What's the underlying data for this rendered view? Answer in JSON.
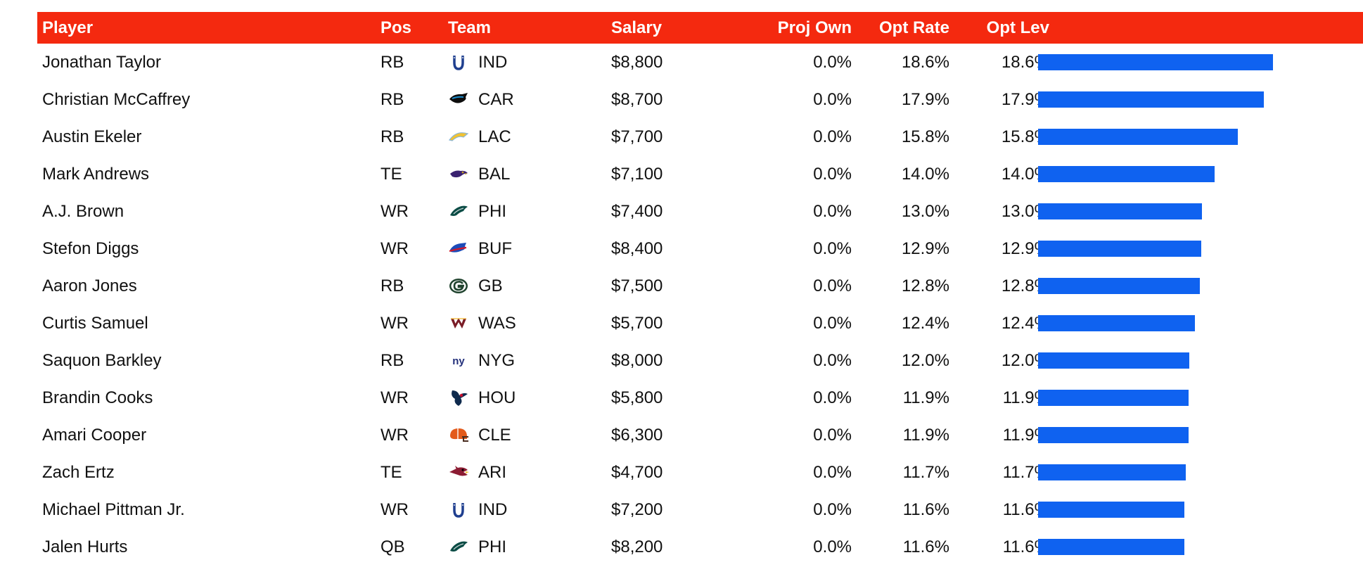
{
  "headers": {
    "player": "Player",
    "pos": "Pos",
    "team": "Team",
    "salary": "Salary",
    "proj_own": "Proj Own",
    "opt_rate": "Opt Rate",
    "opt_lev": "Opt Lev"
  },
  "colors": {
    "header_bg": "#f4290f",
    "bar": "#0f62f0"
  },
  "rows": [
    {
      "player": "Jonathan Taylor",
      "pos": "RB",
      "team": "IND",
      "logo": "colts-horseshoe-icon",
      "salary": "$8,800",
      "proj_own": "0.0%",
      "opt_rate": "18.6%",
      "opt_lev": "18.6%",
      "lev_value": 18.6
    },
    {
      "player": "Christian McCaffrey",
      "pos": "RB",
      "team": "CAR",
      "logo": "panthers-icon",
      "salary": "$8,700",
      "proj_own": "0.0%",
      "opt_rate": "17.9%",
      "opt_lev": "17.9%",
      "lev_value": 17.9
    },
    {
      "player": "Austin Ekeler",
      "pos": "RB",
      "team": "LAC",
      "logo": "chargers-bolt-icon",
      "salary": "$7,700",
      "proj_own": "0.0%",
      "opt_rate": "15.8%",
      "opt_lev": "15.8%",
      "lev_value": 15.8
    },
    {
      "player": "Mark Andrews",
      "pos": "TE",
      "team": "BAL",
      "logo": "ravens-icon",
      "salary": "$7,100",
      "proj_own": "0.0%",
      "opt_rate": "14.0%",
      "opt_lev": "14.0%",
      "lev_value": 14.0
    },
    {
      "player": "A.J. Brown",
      "pos": "WR",
      "team": "PHI",
      "logo": "eagles-icon",
      "salary": "$7,400",
      "proj_own": "0.0%",
      "opt_rate": "13.0%",
      "opt_lev": "13.0%",
      "lev_value": 13.0
    },
    {
      "player": "Stefon Diggs",
      "pos": "WR",
      "team": "BUF",
      "logo": "bills-icon",
      "salary": "$8,400",
      "proj_own": "0.0%",
      "opt_rate": "12.9%",
      "opt_lev": "12.9%",
      "lev_value": 12.9
    },
    {
      "player": "Aaron Jones",
      "pos": "RB",
      "team": "GB",
      "logo": "packers-g-icon",
      "salary": "$7,500",
      "proj_own": "0.0%",
      "opt_rate": "12.8%",
      "opt_lev": "12.8%",
      "lev_value": 12.8
    },
    {
      "player": "Curtis Samuel",
      "pos": "WR",
      "team": "WAS",
      "logo": "commanders-w-icon",
      "salary": "$5,700",
      "proj_own": "0.0%",
      "opt_rate": "12.4%",
      "opt_lev": "12.4%",
      "lev_value": 12.4
    },
    {
      "player": "Saquon Barkley",
      "pos": "RB",
      "team": "NYG",
      "logo": "giants-ny-icon",
      "salary": "$8,000",
      "proj_own": "0.0%",
      "opt_rate": "12.0%",
      "opt_lev": "12.0%",
      "lev_value": 12.0
    },
    {
      "player": "Brandin Cooks",
      "pos": "WR",
      "team": "HOU",
      "logo": "texans-icon",
      "salary": "$5,800",
      "proj_own": "0.0%",
      "opt_rate": "11.9%",
      "opt_lev": "11.9%",
      "lev_value": 11.9
    },
    {
      "player": "Amari Cooper",
      "pos": "WR",
      "team": "CLE",
      "logo": "browns-helmet-icon",
      "salary": "$6,300",
      "proj_own": "0.0%",
      "opt_rate": "11.9%",
      "opt_lev": "11.9%",
      "lev_value": 11.9
    },
    {
      "player": "Zach Ertz",
      "pos": "TE",
      "team": "ARI",
      "logo": "cardinals-icon",
      "salary": "$4,700",
      "proj_own": "0.0%",
      "opt_rate": "11.7%",
      "opt_lev": "11.7%",
      "lev_value": 11.7
    },
    {
      "player": "Michael Pittman Jr.",
      "pos": "WR",
      "team": "IND",
      "logo": "colts-horseshoe-icon",
      "salary": "$7,200",
      "proj_own": "0.0%",
      "opt_rate": "11.6%",
      "opt_lev": "11.6%",
      "lev_value": 11.6
    },
    {
      "player": "Jalen Hurts",
      "pos": "QB",
      "team": "PHI",
      "logo": "eagles-icon",
      "salary": "$8,200",
      "proj_own": "0.0%",
      "opt_rate": "11.6%",
      "opt_lev": "11.6%",
      "lev_value": 11.6
    }
  ]
}
